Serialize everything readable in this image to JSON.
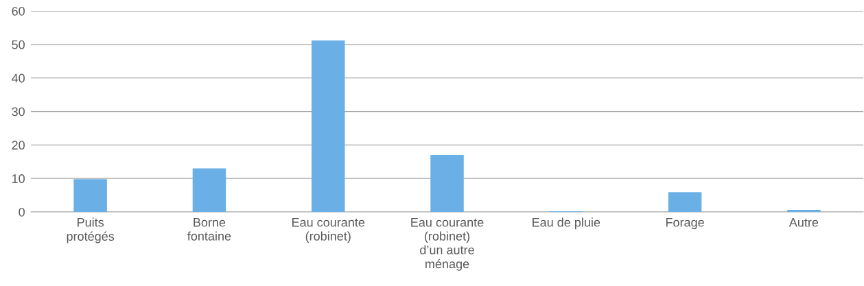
{
  "chart_data": {
    "type": "bar",
    "categories": [
      "Puits\nprotégés",
      "Borne\nfontaine",
      "Eau courante\n(robinet)",
      "Eau courante\n(robinet)\nd’un autre\nménage",
      "Eau de pluie",
      "Forage",
      "Autre"
    ],
    "values": [
      9.8,
      13,
      51.2,
      17,
      0.2,
      5.9,
      0.6
    ],
    "color": "#6ab0e6",
    "ylim": [
      0,
      60
    ],
    "yticks": [
      0,
      10,
      20,
      30,
      40,
      50,
      60
    ],
    "grid": "y"
  }
}
